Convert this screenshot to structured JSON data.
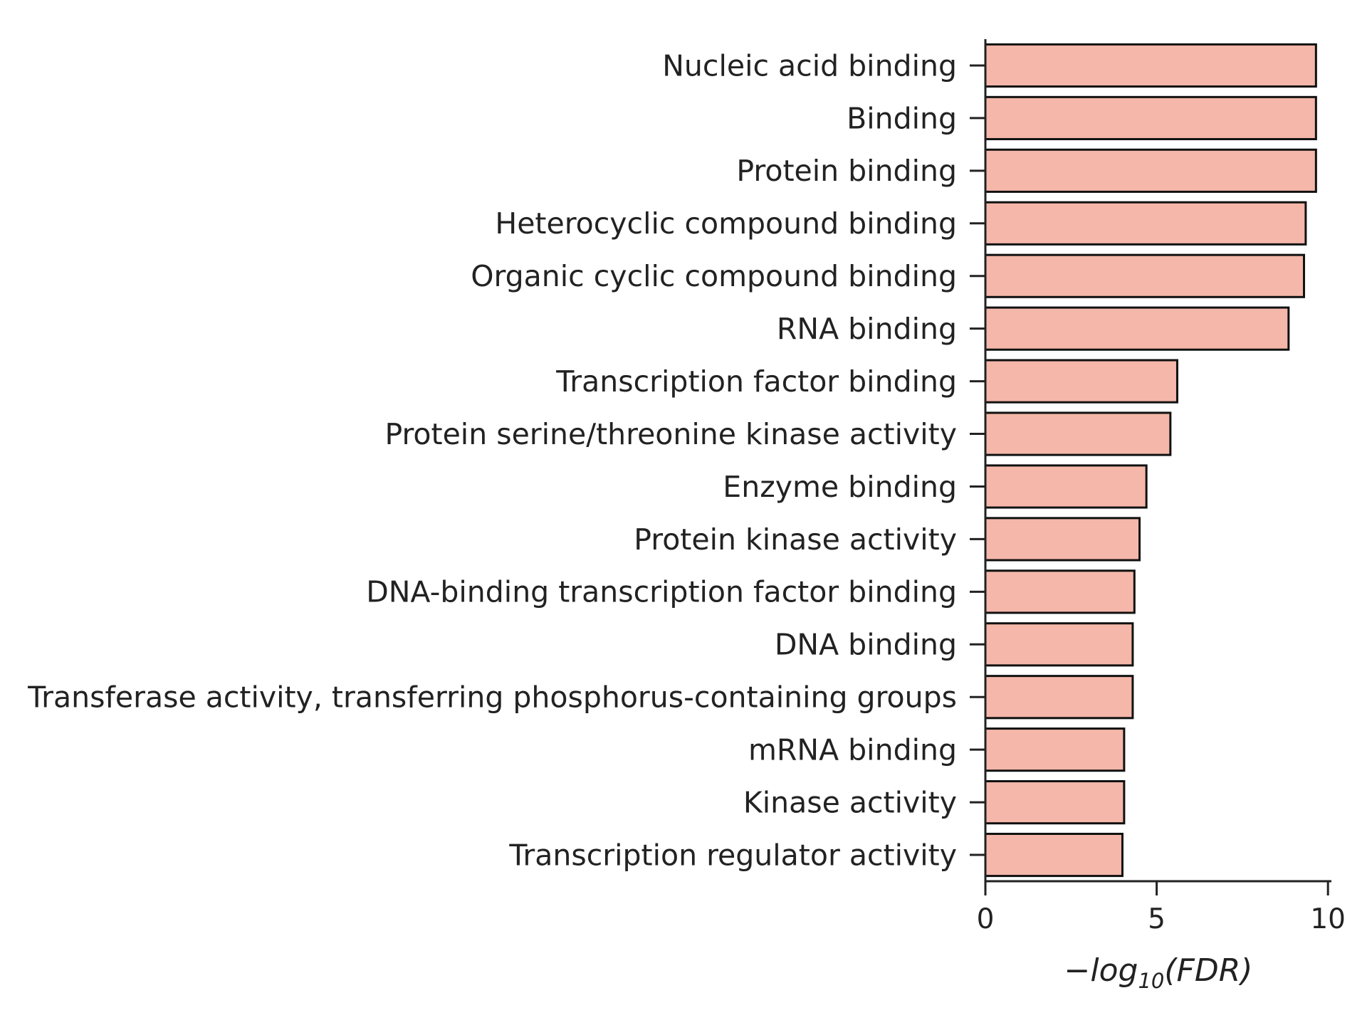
{
  "chart_data": {
    "type": "bar",
    "orientation": "horizontal",
    "categories": [
      "Nucleic acid binding",
      "Binding",
      "Protein binding",
      "Heterocyclic compound binding",
      "Organic cyclic compound binding",
      "RNA binding",
      "Transcription factor binding",
      "Protein serine/threonine kinase activity",
      "Enzyme binding",
      "Protein kinase activity",
      "DNA-binding transcription factor binding",
      "DNA binding",
      "Transferase activity, transferring phosphorus-containing groups",
      "mRNA binding",
      "Kinase activity",
      "Transcription regulator activity"
    ],
    "values": [
      9.65,
      9.65,
      9.65,
      9.35,
      9.3,
      8.85,
      5.6,
      5.4,
      4.7,
      4.5,
      4.35,
      4.3,
      4.3,
      4.05,
      4.05,
      4.0
    ],
    "xlim": [
      0,
      10.1
    ],
    "xticks": [
      0,
      5,
      10
    ],
    "xtick_labels": [
      "0",
      "5",
      "10"
    ],
    "xlabel_parts": {
      "prefix": "−log",
      "sub": "10",
      "suffix": "(FDR)"
    },
    "ylabel": "",
    "title": "",
    "bar_color": "#f4b7a9",
    "edge_color": "#111111",
    "grid": false
  }
}
